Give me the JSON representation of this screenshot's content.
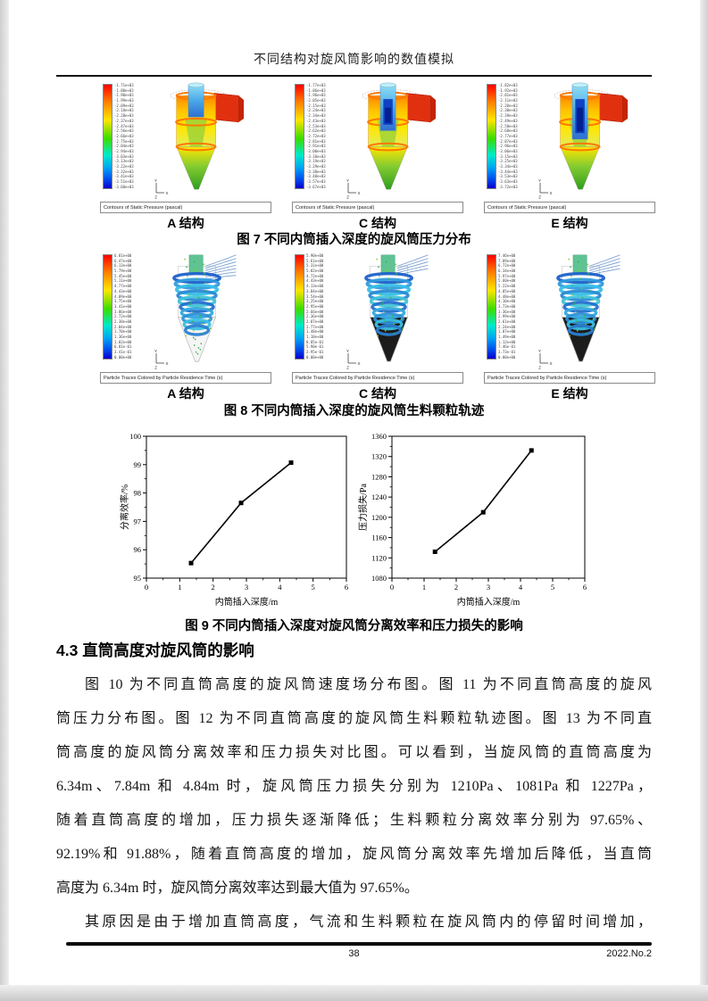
{
  "page": {
    "header_title": "不同结构对旋风筒影响的数值模拟",
    "footer": {
      "page_number": "38",
      "issue": "2022.No.2"
    }
  },
  "style_colors": {
    "text": "#141414",
    "legend_top": "#fb0300",
    "legend_bottom": "#0b00c8",
    "inlet_red": "#e03010",
    "chart_line": "#000000"
  },
  "figure7": {
    "caption": "图 7 不同内筒插入深度的旋风筒压力分布",
    "panel_caption": "Contours of Static Pressure (pascal)",
    "panels": [
      {
        "label": "A 结构",
        "legend_labels": [
          "-1.71e+03",
          "-1.80e+03",
          "-1.90e+03",
          "-1.99e+03",
          "-2.09e+03",
          "-2.18e+03",
          "-2.28e+03",
          "-2.37e+03",
          "-2.47e+03",
          "-2.56e+03",
          "-2.66e+03",
          "-2.75e+03",
          "-2.84e+03",
          "-2.94e+03",
          "-3.03e+03",
          "-3.13e+03",
          "-3.22e+03",
          "-3.32e+03",
          "-3.41e+03",
          "-3.51e+03",
          "-3.60e+03"
        ]
      },
      {
        "label": "C 结构",
        "legend_labels": [
          "-1.77e+03",
          "-1.86e+03",
          "-1.96e+03",
          "-2.05e+03",
          "-2.15e+03",
          "-2.24e+03",
          "-2.34e+03",
          "-2.43e+03",
          "-2.53e+03",
          "-2.62e+03",
          "-2.72e+03",
          "-2.81e+03",
          "-2.91e+03",
          "-3.00e+03",
          "-3.10e+03",
          "-3.19e+03",
          "-3.29e+03",
          "-3.38e+03",
          "-3.48e+03",
          "-3.57e+03",
          "-3.67e+03"
        ]
      },
      {
        "label": "E 结构",
        "legend_labels": [
          "-1.82e+03",
          "-1.92e+03",
          "-2.01e+03",
          "-2.11e+03",
          "-2.20e+03",
          "-2.30e+03",
          "-2.39e+03",
          "-2.49e+03",
          "-2.58e+03",
          "-2.68e+03",
          "-2.77e+03",
          "-2.87e+03",
          "-2.96e+03",
          "-3.06e+03",
          "-3.15e+03",
          "-3.25e+03",
          "-3.34e+03",
          "-3.44e+03",
          "-3.53e+03",
          "-3.63e+03",
          "-3.72e+03"
        ]
      }
    ]
  },
  "figure8": {
    "caption": "图 8 不同内筒插入深度的旋风筒生料颗粒轨迹",
    "panel_caption": "Particle Traces Colored by Particle Residence Time (s)",
    "panels": [
      {
        "label": "A 结构",
        "legend_labels": [
          "6.81e+00",
          "6.47e+00",
          "6.13e+00",
          "5.79e+00",
          "5.45e+00",
          "5.11e+00",
          "4.77e+00",
          "4.43e+00",
          "4.09e+00",
          "3.75e+00",
          "3.41e+00",
          "3.06e+00",
          "2.72e+00",
          "2.38e+00",
          "2.04e+00",
          "1.70e+00",
          "1.36e+00",
          "1.02e+00",
          "6.81e-01",
          "3.41e-01",
          "0.00e+00"
        ]
      },
      {
        "label": "C 结构",
        "legend_labels": [
          "5.90e+00",
          "5.61e+00",
          "5.31e+00",
          "5.02e+00",
          "4.72e+00",
          "4.43e+00",
          "4.13e+00",
          "3.84e+00",
          "3.54e+00",
          "3.25e+00",
          "2.95e+00",
          "2.66e+00",
          "2.36e+00",
          "2.07e+00",
          "1.77e+00",
          "1.48e+00",
          "1.18e+00",
          "8.85e-01",
          "5.90e-01",
          "2.95e-01",
          "0.00e+00"
        ]
      },
      {
        "label": "E 结构",
        "legend_labels": [
          "7.46e+00",
          "7.09e+00",
          "6.72e+00",
          "6.34e+00",
          "5.97e+00",
          "5.60e+00",
          "5.22e+00",
          "4.85e+00",
          "4.48e+00",
          "4.10e+00",
          "3.73e+00",
          "3.36e+00",
          "2.99e+00",
          "2.61e+00",
          "2.24e+00",
          "1.87e+00",
          "1.49e+00",
          "1.12e+00",
          "7.46e-01",
          "3.73e-01",
          "0.00e+00"
        ]
      }
    ]
  },
  "figure9": {
    "caption": "图 9 不同内筒插入深度对旋风筒分离效率和压力损失的影响"
  },
  "chart_data": [
    {
      "type": "line",
      "x": [
        1.34,
        2.84,
        4.34
      ],
      "series": [
        {
          "name": "分离效率",
          "values": [
            95.53,
            97.65,
            99.07
          ]
        }
      ],
      "title": "",
      "xlabel": "内筒插入深度/m",
      "ylabel": "分离效率/%",
      "xlim": [
        0,
        6
      ],
      "ylim": [
        95,
        100
      ],
      "xticks": [
        0,
        1,
        2,
        3,
        4,
        5,
        6
      ],
      "yticks": [
        95,
        96,
        97,
        98,
        99,
        100
      ],
      "minor_x_step": 0.5,
      "minor_y_step": 0.5,
      "grid": false,
      "legend_position": "none",
      "marker": "filled-square",
      "color": "#000000"
    },
    {
      "type": "line",
      "x": [
        1.34,
        2.84,
        4.34
      ],
      "series": [
        {
          "name": "压力损失",
          "values": [
            1132,
            1210,
            1332
          ]
        }
      ],
      "title": "",
      "xlabel": "内筒插入深度/m",
      "ylabel": "压力损失/Pa",
      "xlim": [
        0,
        6
      ],
      "ylim": [
        1080,
        1360
      ],
      "xticks": [
        0,
        1,
        2,
        3,
        4,
        5,
        6
      ],
      "yticks": [
        1080,
        1120,
        1160,
        1200,
        1240,
        1280,
        1320,
        1360
      ],
      "minor_x_step": 0.5,
      "minor_y_step": 20,
      "grid": false,
      "legend_position": "none",
      "marker": "filled-square",
      "color": "#000000"
    }
  ],
  "section": {
    "heading": "4.3 直筒高度对旋风筒的影响"
  },
  "paragraphs": [
    {
      "lines": [
        {
          "text": "图 10 为不同直筒高度的旋风筒速度场分布图。图 11 为不同直筒高度的旋风",
          "indent": true,
          "justify": true
        },
        {
          "text": "筒压力分布图。图 12 为不同直筒高度的旋风筒生料颗粒轨迹图。图 13 为不同直",
          "indent": false,
          "justify": true
        },
        {
          "text": "筒高度的旋风筒分离效率和压力损失对比图。可以看到，当旋风筒的直筒高度为",
          "indent": false,
          "justify": true
        },
        {
          "text": "6.34m、7.84m 和 4.84m 时，旋风筒压力损失分别为 1210Pa、1081Pa 和 1227Pa，",
          "indent": false,
          "justify": true
        },
        {
          "text": "随着直筒高度的增加，压力损失逐渐降低；生料颗粒分离效率分别为  97.65%、",
          "indent": false,
          "justify": true
        },
        {
          "text": "92.19%和 91.88%，随着直筒高度的增加，旋风筒分离效率先增加后降低，当直筒",
          "indent": false,
          "justify": true
        },
        {
          "text": "高度为 6.34m 时，旋风筒分离效率达到最大值为 97.65%。",
          "indent": false,
          "justify": false
        }
      ]
    },
    {
      "lines": [
        {
          "text": "其原因是由于增加直筒高度，气流和生料颗粒在旋风筒内的停留时间增加，",
          "indent": true,
          "justify": true
        }
      ]
    }
  ],
  "axis_triad": {
    "y": "Y",
    "x": "X",
    "z": "Z"
  }
}
